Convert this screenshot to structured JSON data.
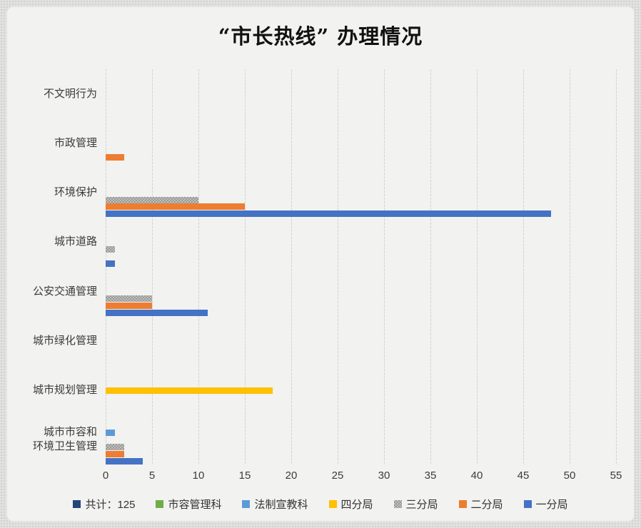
{
  "title": "“市长热线” 办理情况",
  "labels_display": [
    "不文明行为",
    "市政管理",
    "环境保护",
    "城市道路",
    "公安交通管理",
    "城市绿化管理",
    "城市规划管理",
    "城市市容和\n环境卫生管理"
  ],
  "legend": {
    "position": "bottom",
    "items": [
      {
        "label": "共计：125",
        "color": "#264478"
      },
      {
        "label": "市容管理科",
        "color": "#70AD47"
      },
      {
        "label": "法制宣教科",
        "color": "#5B9BD5"
      },
      {
        "label": "四分局",
        "color": "#FFC000"
      },
      {
        "label": "三分局",
        "color": "#A5A5A5"
      },
      {
        "label": "二分局",
        "color": "#ED7D31"
      },
      {
        "label": "一分局",
        "color": "#4472C4"
      }
    ]
  },
  "chart_data": {
    "type": "bar",
    "orientation": "horizontal",
    "title": "“市长热线” 办理情况",
    "total_label": "共计：125",
    "total": 125,
    "categories": [
      "不文明行为",
      "市政管理",
      "环境保护",
      "城市道路",
      "公安交通管理",
      "城市绿化管理",
      "城市规划管理",
      "城市市容和环境卫生管理"
    ],
    "series": [
      {
        "name": "共计",
        "color": "#264478",
        "pattern": false,
        "values": [
          0,
          0,
          0,
          0,
          0,
          0,
          0,
          0
        ]
      },
      {
        "name": "市容管理科",
        "color": "#70AD47",
        "pattern": false,
        "values": [
          0,
          0,
          0,
          0,
          0,
          0,
          0,
          0
        ]
      },
      {
        "name": "法制宣教科",
        "color": "#5B9BD5",
        "pattern": false,
        "values": [
          0,
          0,
          0,
          0,
          0,
          0,
          0,
          1
        ]
      },
      {
        "name": "四分局",
        "color": "#FFC000",
        "pattern": false,
        "values": [
          0,
          0,
          0,
          0,
          0,
          0,
          18,
          0
        ]
      },
      {
        "name": "三分局",
        "color": "#A5A5A5",
        "pattern": true,
        "values": [
          0,
          0,
          10,
          1,
          5,
          0,
          0,
          2
        ]
      },
      {
        "name": "二分局",
        "color": "#ED7D31",
        "pattern": false,
        "values": [
          0,
          2,
          15,
          0,
          5,
          0,
          0,
          2
        ]
      },
      {
        "name": "一分局",
        "color": "#4472C4",
        "pattern": false,
        "values": [
          0,
          0,
          48,
          1,
          11,
          0,
          0,
          4
        ]
      }
    ],
    "x_ticks": [
      "0",
      "5",
      "10",
      "15",
      "20",
      "25",
      "30",
      "35",
      "40",
      "45",
      "50",
      "55"
    ],
    "xlim": [
      0,
      55
    ],
    "grid": "vertical",
    "legend_position": "bottom"
  }
}
